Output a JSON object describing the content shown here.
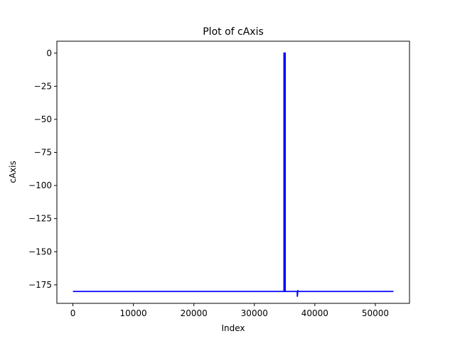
{
  "chart_data": {
    "type": "line",
    "title": "Plot of cAxis",
    "xlabel": "Index",
    "ylabel": "cAxis",
    "xlim": [
      -2650,
      55650
    ],
    "ylim": [
      -189,
      9
    ],
    "xticks": [
      0,
      10000,
      20000,
      30000,
      40000,
      50000
    ],
    "xtick_labels": [
      "0",
      "10000",
      "20000",
      "30000",
      "40000",
      "50000"
    ],
    "yticks": [
      0,
      -25,
      -50,
      -75,
      -100,
      -125,
      -150,
      -175
    ],
    "ytick_labels": [
      "0",
      "−25",
      "−50",
      "−75",
      "−100",
      "−125",
      "−150",
      "−175"
    ],
    "grid": false,
    "series": [
      {
        "color": "#0000ff",
        "x": [
          0,
          34900,
          34900,
          35100,
          35100,
          37100,
          37100,
          37200,
          37200,
          53000
        ],
        "y": [
          -180,
          -180,
          0,
          0,
          -180,
          -180,
          -184,
          -179,
          -180,
          -180
        ]
      }
    ]
  }
}
